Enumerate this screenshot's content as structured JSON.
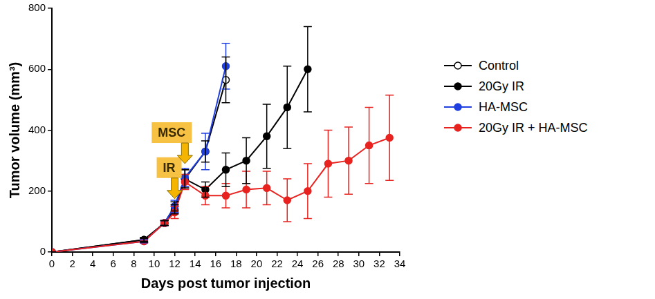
{
  "chart_data": {
    "type": "line",
    "x_label": "Days post tumor injection",
    "y_label": "Tumor volume (mm³)",
    "x": [
      0,
      9,
      11,
      12,
      13,
      15,
      17,
      19,
      21,
      23,
      25,
      27,
      29,
      31,
      33
    ],
    "xlim": [
      0,
      34
    ],
    "xticks": [
      0,
      2,
      4,
      6,
      8,
      10,
      12,
      14,
      16,
      18,
      20,
      22,
      24,
      26,
      28,
      30,
      32,
      34
    ],
    "ylim": [
      0,
      800
    ],
    "yticks": [
      0,
      200,
      400,
      600,
      800
    ],
    "grid": false,
    "legend": "right",
    "series": [
      {
        "name": "Control",
        "color": "#000000",
        "marker": "open_circle",
        "line_style": "solid",
        "values": [
          0,
          40,
          95,
          150,
          240,
          330,
          565,
          null,
          null,
          null,
          null,
          null,
          null,
          null,
          null
        ],
        "errors": [
          0,
          5,
          8,
          15,
          30,
          35,
          75,
          null,
          null,
          null,
          null,
          null,
          null,
          null,
          null
        ]
      },
      {
        "name": "20Gy IR",
        "color": "#000000",
        "marker": "circle",
        "line_style": "solid",
        "values": [
          0,
          40,
          95,
          140,
          240,
          205,
          270,
          300,
          380,
          475,
          600,
          null,
          null,
          null,
          null
        ],
        "errors": [
          0,
          8,
          8,
          15,
          30,
          25,
          55,
          75,
          105,
          135,
          140,
          null,
          null,
          null,
          null
        ]
      },
      {
        "name": "HA-MSC",
        "color": "#1f3fe0",
        "marker": "circle",
        "line_style": "solid",
        "values": [
          0,
          35,
          95,
          150,
          245,
          330,
          610,
          null,
          null,
          null,
          null,
          null,
          null,
          null,
          null
        ],
        "errors": [
          0,
          5,
          8,
          20,
          30,
          60,
          75,
          null,
          null,
          null,
          null,
          null,
          null,
          null,
          null
        ]
      },
      {
        "name": "20Gy IR + HA-MSC",
        "color": "#e8231f",
        "marker": "circle",
        "line_style": "solid",
        "values": [
          0,
          35,
          95,
          130,
          230,
          185,
          185,
          205,
          210,
          170,
          200,
          290,
          300,
          350,
          375
        ],
        "errors": [
          0,
          5,
          8,
          20,
          25,
          30,
          40,
          60,
          55,
          70,
          90,
          110,
          110,
          125,
          140
        ]
      }
    ],
    "annotations": [
      {
        "text": "IR",
        "x": 12,
        "y": 175
      },
      {
        "text": "MSC",
        "x": 13,
        "y": 290
      }
    ]
  }
}
